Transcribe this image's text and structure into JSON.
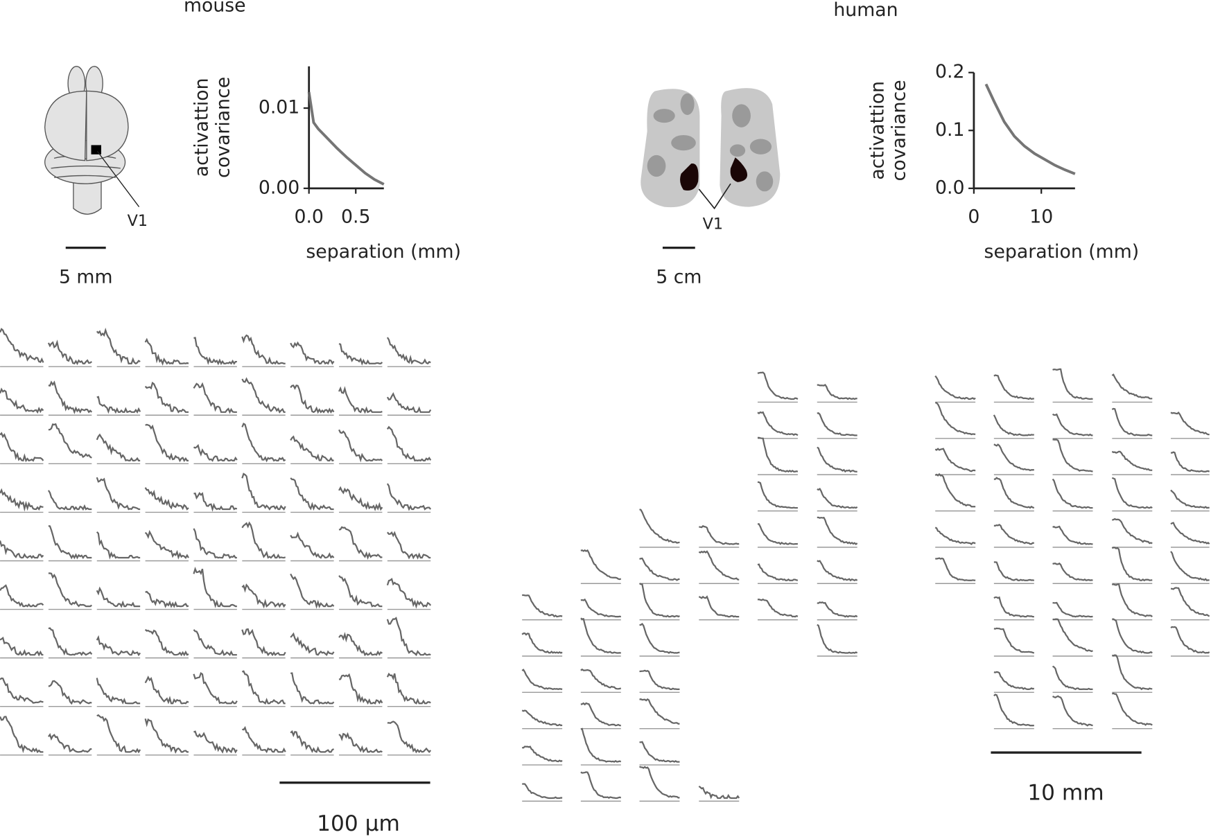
{
  "titles": {
    "mouse": "mouse",
    "human": "human"
  },
  "annotations": {
    "mouse_v1": "V1",
    "human_v1": "V1",
    "mouse_brain_scale": "5 mm",
    "human_brain_scale": "5 cm",
    "mouse_grid_scale": "100 µm",
    "human_grid_scale": "10 mm"
  },
  "chart_data": [
    {
      "type": "line",
      "ylabel": [
        "activattion",
        "covariance"
      ],
      "xlabel": "separation (mm)",
      "x": [
        0,
        0.05,
        0.1,
        0.2,
        0.3,
        0.4,
        0.5,
        0.6,
        0.7,
        0.8
      ],
      "series": [
        {
          "color": "#666666",
          "values": [
            0.012,
            0.0082,
            0.0074,
            0.0062,
            0.005,
            0.0039,
            0.0029,
            0.0019,
            0.0011,
            0.0005
          ]
        }
      ],
      "xlim": [
        0,
        0.8
      ],
      "ylim": [
        0,
        0.0152
      ],
      "xticks": [
        {
          "value": 0,
          "label": "0.0"
        },
        0.5
      ],
      "yticks": [
        {
          "value": 0,
          "label": "0.00"
        },
        0.01
      ]
    },
    {
      "type": "line",
      "ylabel": [
        "activattion",
        "covariance"
      ],
      "xlabel": "separation (mm)",
      "x": [
        1.8,
        3,
        4.5,
        6,
        7.5,
        9,
        10.5,
        12,
        13.5,
        15
      ],
      "series": [
        {
          "color": "#666666",
          "values": [
            0.18,
            0.15,
            0.115,
            0.09,
            0.073,
            0.06,
            0.05,
            0.04,
            0.032,
            0.025
          ]
        }
      ],
      "xlim": [
        0,
        15
      ],
      "ylim": [
        0,
        0.2
      ],
      "xticks": [
        0,
        10
      ],
      "yticks": [
        {
          "value": 0,
          "label": "0.0"
        },
        0.1,
        0.2
      ]
    }
  ]
}
